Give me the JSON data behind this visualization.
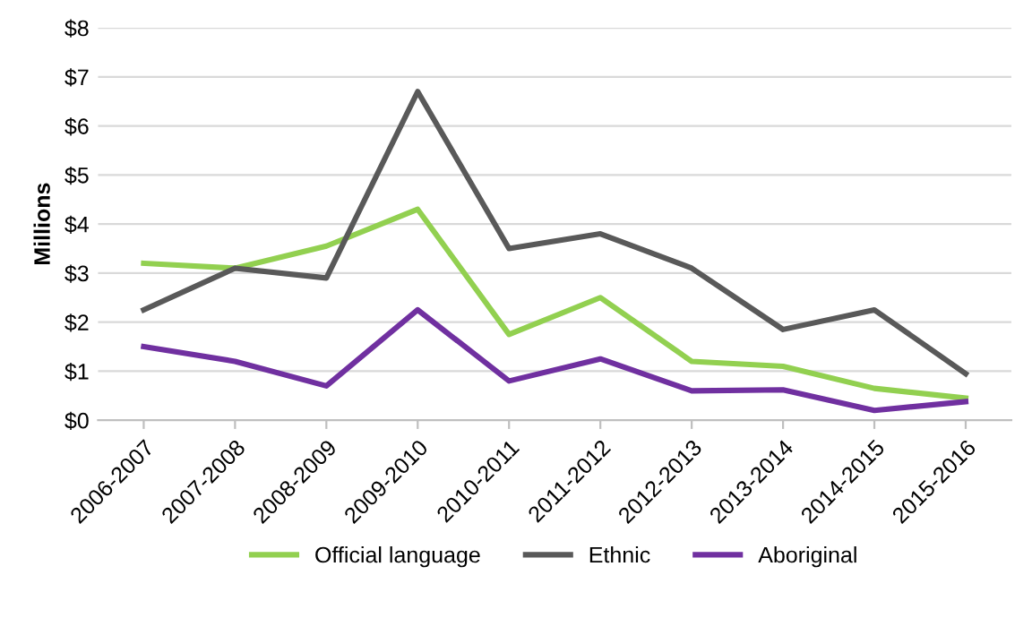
{
  "chart_data": {
    "type": "line",
    "ylabel": "Millions",
    "categories": [
      "2006-2007",
      "2007-2008",
      "2008-2009",
      "2009-2010",
      "2010-2011",
      "2011-2012",
      "2012-2013",
      "2013-2014",
      "2014-2015",
      "2015-2016"
    ],
    "series": [
      {
        "name": "Official language",
        "color": "#92d050",
        "values": [
          3.2,
          3.1,
          3.55,
          4.3,
          1.75,
          2.5,
          1.2,
          1.1,
          0.65,
          0.45
        ]
      },
      {
        "name": "Ethnic",
        "color": "#595959",
        "values": [
          2.25,
          3.1,
          2.9,
          6.7,
          3.5,
          3.8,
          3.1,
          1.85,
          2.25,
          0.95
        ]
      },
      {
        "name": "Aboriginal",
        "color": "#7030a0",
        "values": [
          1.5,
          1.2,
          0.7,
          2.25,
          0.8,
          1.25,
          0.6,
          0.62,
          0.2,
          0.38
        ]
      }
    ],
    "ylim": [
      0,
      8
    ],
    "yticks": [
      {
        "value": 0,
        "label": "$0"
      },
      {
        "value": 1,
        "label": "$1"
      },
      {
        "value": 2,
        "label": "$2"
      },
      {
        "value": 3,
        "label": "$3"
      },
      {
        "value": 4,
        "label": "$4"
      },
      {
        "value": 5,
        "label": "$5"
      },
      {
        "value": 6,
        "label": "$6"
      },
      {
        "value": 7,
        "label": "$7"
      },
      {
        "value": 8,
        "label": "$8"
      }
    ],
    "grid": "y",
    "legend": "bottom",
    "marker": "none",
    "line_style": "solid"
  }
}
